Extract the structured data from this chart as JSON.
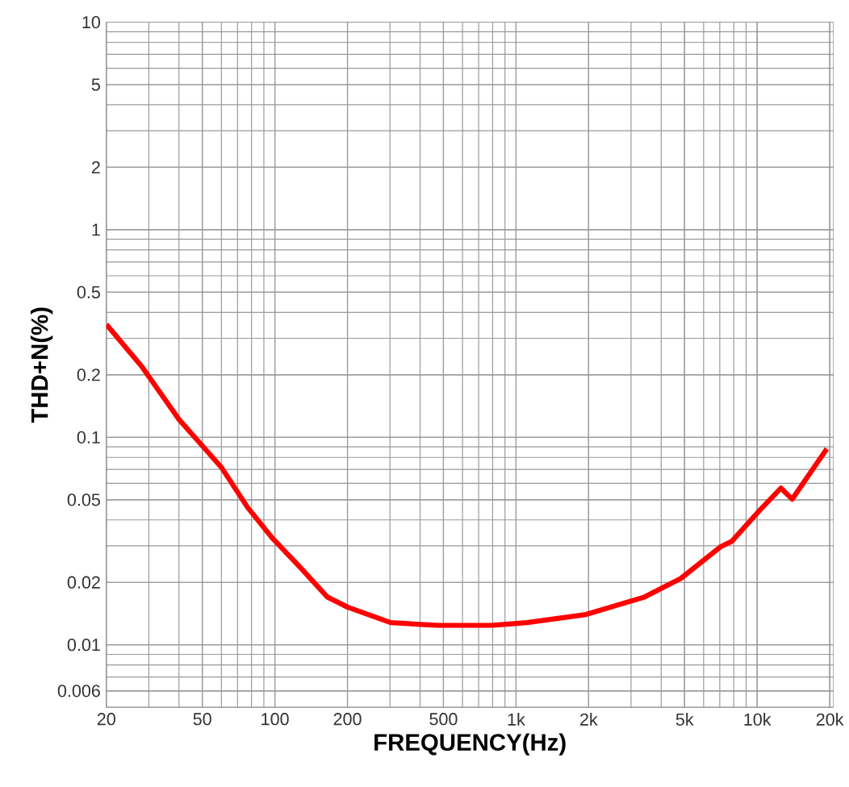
{
  "chart_data": {
    "type": "line",
    "xlabel": "FREQUENCY(Hz)",
    "ylabel": "THD+N(%)",
    "log": "xy",
    "grid": true,
    "color": "#ff0000",
    "x": [
      20,
      28,
      40,
      60,
      77,
      98,
      127,
      165,
      200,
      302,
      476,
      785,
      1110,
      1950,
      3410,
      4830,
      7060,
      7850,
      10300,
      12550,
      13970,
      19450
    ],
    "values": [
      0.35,
      0.22,
      0.122,
      0.0716,
      0.046,
      0.0325,
      0.0237,
      0.017,
      0.0152,
      0.0128,
      0.0124,
      0.0124,
      0.0128,
      0.014,
      0.017,
      0.0209,
      0.0297,
      0.0315,
      0.0448,
      0.0569,
      0.0503,
      0.088
    ],
    "xlim": [
      20,
      20700
    ],
    "ylim": [
      0.005,
      10
    ],
    "xticks": [
      20,
      50,
      100,
      200,
      500,
      {
        "value": 1000,
        "label": "1k"
      },
      {
        "value": 2000,
        "label": "2k"
      },
      {
        "value": 5000,
        "label": "5k"
      },
      {
        "value": 10000,
        "label": "10k"
      },
      {
        "value": 20000,
        "label": "20k"
      }
    ],
    "yticks": [
      10,
      5,
      2,
      1,
      0.5,
      0.2,
      0.1,
      0.05,
      0.02,
      0.01,
      0.006
    ]
  }
}
